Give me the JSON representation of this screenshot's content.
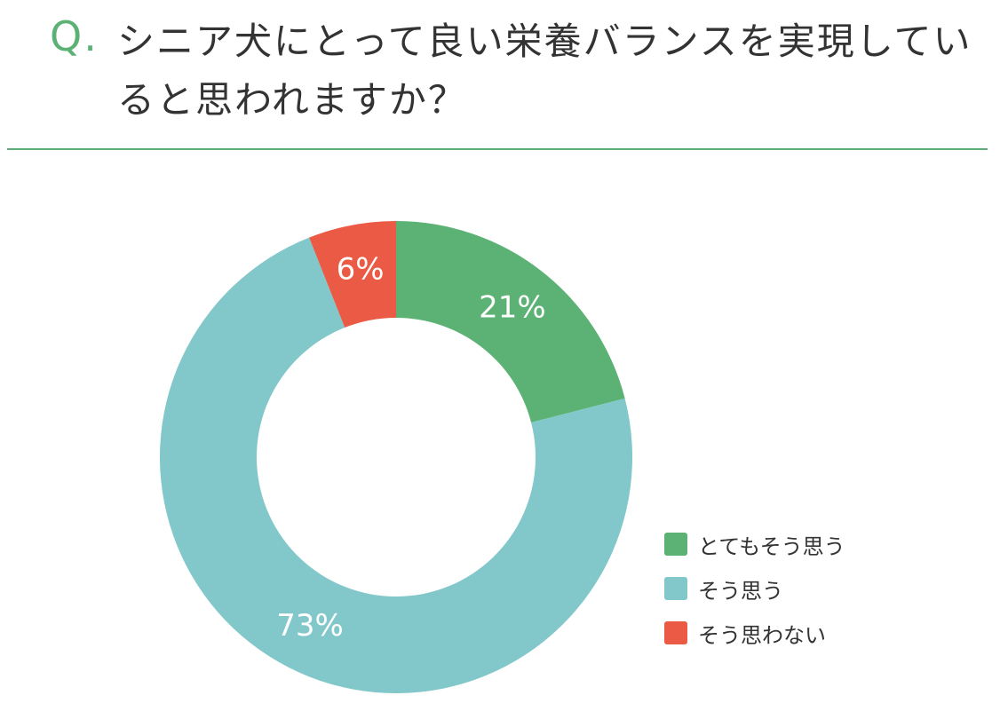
{
  "header": {
    "q_mark": "Q.",
    "question": "シニア犬にとって良い栄養バランスを実現していると思われますか？"
  },
  "colors": {
    "accent": "#5cb274",
    "very_much": "#5cb274",
    "agree": "#82c8ca",
    "disagree": "#eb5a44",
    "text": "#333333"
  },
  "chart_data": {
    "type": "pie",
    "donut": true,
    "series": [
      {
        "name": "とてもそう思う",
        "value": 21,
        "label": "21%",
        "color": "#5cb274"
      },
      {
        "name": "そう思う",
        "value": 73,
        "label": "73%",
        "color": "#82c8ca"
      },
      {
        "name": "そう思わない",
        "value": 6,
        "label": "6%",
        "color": "#eb5a44"
      }
    ],
    "start": "12 o'clock",
    "direction": "clockwise",
    "legend_position": "bottom-right"
  }
}
